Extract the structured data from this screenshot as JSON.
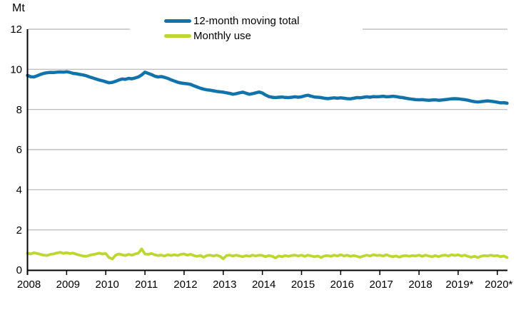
{
  "chart_data": {
    "type": "line",
    "title": "",
    "xlabel": "",
    "ylabel": "Mt",
    "ylim": [
      0,
      12
    ],
    "y_ticks": [
      0,
      2,
      4,
      6,
      8,
      10,
      12
    ],
    "x_start": "2008-01",
    "x_end": "2020-04",
    "frequency": "monthly",
    "x_tick_labels": [
      "2008",
      "2009",
      "2010",
      "2011",
      "2012",
      "2013",
      "2014",
      "2015",
      "2016",
      "2017",
      "2018",
      "2019*",
      "2020*"
    ],
    "grid": "horizontal",
    "legend_position": "top-center",
    "colors": {
      "moving_total": "#1273aa",
      "monthly_use": "#bed730",
      "gridline": "#c0c0c4",
      "axis": "#000000",
      "text": "#000000",
      "background": "#ffffff"
    },
    "series": [
      {
        "name": "12-month moving total",
        "color_key": "moving_total",
        "stroke_width": 4.5,
        "values": [
          9.7,
          9.63,
          9.62,
          9.68,
          9.75,
          9.8,
          9.83,
          9.85,
          9.84,
          9.86,
          9.87,
          9.86,
          9.88,
          9.85,
          9.8,
          9.78,
          9.75,
          9.72,
          9.68,
          9.62,
          9.57,
          9.52,
          9.47,
          9.43,
          9.38,
          9.33,
          9.35,
          9.4,
          9.47,
          9.52,
          9.5,
          9.55,
          9.53,
          9.57,
          9.62,
          9.72,
          9.86,
          9.8,
          9.74,
          9.66,
          9.62,
          9.64,
          9.6,
          9.55,
          9.48,
          9.42,
          9.36,
          9.32,
          9.3,
          9.28,
          9.25,
          9.18,
          9.12,
          9.06,
          9.01,
          8.98,
          8.96,
          8.93,
          8.9,
          8.88,
          8.86,
          8.83,
          8.8,
          8.76,
          8.79,
          8.83,
          8.86,
          8.81,
          8.76,
          8.79,
          8.83,
          8.87,
          8.82,
          8.72,
          8.64,
          8.61,
          8.59,
          8.61,
          8.62,
          8.6,
          8.59,
          8.61,
          8.63,
          8.61,
          8.63,
          8.68,
          8.71,
          8.66,
          8.62,
          8.61,
          8.59,
          8.56,
          8.54,
          8.56,
          8.58,
          8.56,
          8.58,
          8.56,
          8.54,
          8.53,
          8.56,
          8.59,
          8.58,
          8.61,
          8.63,
          8.61,
          8.64,
          8.63,
          8.64,
          8.66,
          8.63,
          8.64,
          8.66,
          8.64,
          8.61,
          8.59,
          8.56,
          8.53,
          8.51,
          8.49,
          8.48,
          8.49,
          8.47,
          8.46,
          8.47,
          8.48,
          8.46,
          8.47,
          8.49,
          8.51,
          8.53,
          8.54,
          8.53,
          8.51,
          8.49,
          8.46,
          8.42,
          8.39,
          8.37,
          8.39,
          8.41,
          8.43,
          8.41,
          8.39,
          8.36,
          8.33,
          8.34,
          8.31
        ]
      },
      {
        "name": "Monthly use",
        "color_key": "monthly_use",
        "stroke_width": 3.8,
        "values": [
          0.84,
          0.8,
          0.86,
          0.82,
          0.78,
          0.74,
          0.72,
          0.78,
          0.8,
          0.85,
          0.88,
          0.83,
          0.86,
          0.82,
          0.84,
          0.78,
          0.74,
          0.7,
          0.68,
          0.73,
          0.77,
          0.8,
          0.84,
          0.8,
          0.82,
          0.62,
          0.55,
          0.74,
          0.8,
          0.76,
          0.72,
          0.78,
          0.74,
          0.8,
          0.84,
          1.05,
          0.8,
          0.78,
          0.82,
          0.76,
          0.72,
          0.74,
          0.7,
          0.76,
          0.72,
          0.76,
          0.72,
          0.78,
          0.8,
          0.74,
          0.78,
          0.72,
          0.68,
          0.72,
          0.64,
          0.72,
          0.74,
          0.7,
          0.74,
          0.68,
          0.56,
          0.72,
          0.74,
          0.7,
          0.74,
          0.7,
          0.66,
          0.72,
          0.68,
          0.74,
          0.7,
          0.74,
          0.72,
          0.66,
          0.72,
          0.68,
          0.6,
          0.7,
          0.66,
          0.72,
          0.68,
          0.72,
          0.74,
          0.7,
          0.74,
          0.68,
          0.74,
          0.7,
          0.66,
          0.7,
          0.62,
          0.7,
          0.72,
          0.68,
          0.74,
          0.7,
          0.76,
          0.7,
          0.74,
          0.68,
          0.72,
          0.68,
          0.64,
          0.7,
          0.74,
          0.7,
          0.76,
          0.72,
          0.74,
          0.7,
          0.76,
          0.7,
          0.66,
          0.7,
          0.64,
          0.7,
          0.72,
          0.68,
          0.72,
          0.7,
          0.74,
          0.68,
          0.74,
          0.7,
          0.66,
          0.72,
          0.66,
          0.72,
          0.74,
          0.7,
          0.76,
          0.72,
          0.76,
          0.7,
          0.74,
          0.68,
          0.64,
          0.68,
          0.62,
          0.68,
          0.72,
          0.7,
          0.74,
          0.7,
          0.72,
          0.66,
          0.7,
          0.62
        ]
      }
    ]
  }
}
